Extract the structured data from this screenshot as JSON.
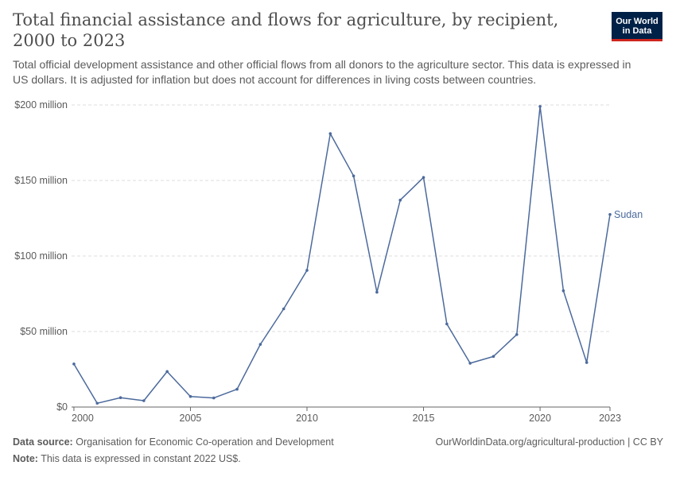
{
  "title": "Total financial assistance and flows for agriculture, by recipient, 2000 to 2023",
  "subtitle": "Total official development assistance and other official flows from all donors to the agriculture sector. This data is expressed in US dollars. It is adjusted for inflation but does not account for differences in living costs between countries.",
  "logo": {
    "line1": "Our World",
    "line2": "in Data"
  },
  "footer": {
    "source_label": "Data source:",
    "source_text": "Organisation for Economic Co-operation and Development",
    "url": "OurWorldinData.org/agricultural-production | CC BY",
    "note_label": "Note:",
    "note_text": "This data is expressed in constant 2022 US$."
  },
  "colors": {
    "series": "#4c6a9c",
    "grid": "#dddddd",
    "axis": "#666666",
    "text": "#5b5b5b"
  },
  "chart_data": {
    "type": "line",
    "title": "Total financial assistance and flows for agriculture, by recipient, 2000 to 2023",
    "xlabel": "",
    "ylabel": "",
    "x": [
      2000,
      2001,
      2002,
      2003,
      2004,
      2005,
      2006,
      2007,
      2008,
      2009,
      2010,
      2011,
      2012,
      2013,
      2014,
      2015,
      2016,
      2017,
      2018,
      2019,
      2020,
      2021,
      2022,
      2023
    ],
    "series": [
      {
        "name": "Sudan",
        "values": [
          28.5,
          2.5,
          6.2,
          4.2,
          23.5,
          7,
          6,
          11.8,
          41.5,
          65,
          90.5,
          181,
          153,
          76,
          137,
          152,
          55,
          29,
          33.5,
          48,
          199,
          77,
          29.5,
          127.5
        ]
      }
    ],
    "xlim": [
      1999.9,
      2023
    ],
    "ylim": [
      0,
      200
    ],
    "x_ticks": [
      {
        "value": 2000,
        "label": "2000"
      },
      {
        "value": 2005,
        "label": "2005"
      },
      {
        "value": 2010,
        "label": "2010"
      },
      {
        "value": 2015,
        "label": "2015"
      },
      {
        "value": 2020,
        "label": "2020"
      },
      {
        "value": 2023,
        "label": "2023"
      }
    ],
    "y_ticks": [
      {
        "value": 0,
        "label": "$0"
      },
      {
        "value": 50,
        "label": "$50 million"
      },
      {
        "value": 100,
        "label": "$100 million"
      },
      {
        "value": 150,
        "label": "$150 million"
      },
      {
        "value": 200,
        "label": "$200 million"
      }
    ],
    "grid": true,
    "legend": "end-of-line labels"
  }
}
